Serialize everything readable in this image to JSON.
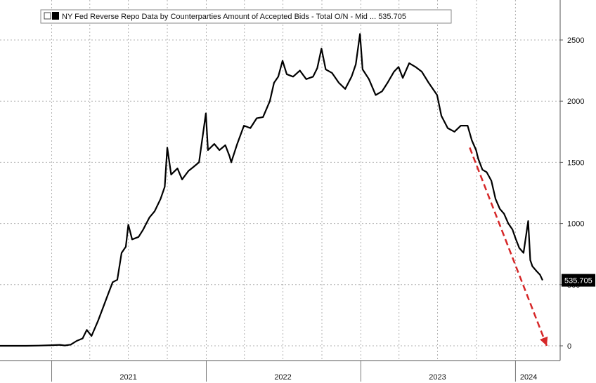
{
  "chart_data": {
    "type": "line",
    "legend_placement": "top-left",
    "grid": true,
    "ylim": [
      0,
      2800
    ],
    "y_axis_position": "right",
    "y_ticks": [
      0,
      500,
      1000,
      1500,
      2000,
      2500
    ],
    "y_tick_labels": [
      "0",
      "500",
      "1000",
      "1500",
      "2000",
      "2500"
    ],
    "x_range": [
      "2020-09",
      "2024-03"
    ],
    "x_tick_labels": [
      "2021",
      "2022",
      "2023",
      "2024"
    ],
    "x_tick_dates": [
      "2021-07",
      "2022-07",
      "2023-07",
      "2024-02"
    ],
    "x_year_boundaries": [
      "2021-01",
      "2022-01",
      "2023-01",
      "2024-01"
    ],
    "series": [
      {
        "name": "NY Fed Reverse Repo Data by Counterparties Amount of Accepted Bids - Total O/N - Mid ... 535.705",
        "color": "#000000",
        "last_value_label": "535.705",
        "points": [
          [
            "2020-09-01",
            0
          ],
          [
            "2020-10-01",
            0
          ],
          [
            "2020-11-01",
            0
          ],
          [
            "2020-12-01",
            2
          ],
          [
            "2021-01-01",
            5
          ],
          [
            "2021-01-20",
            8
          ],
          [
            "2021-02-01",
            3
          ],
          [
            "2021-02-15",
            10
          ],
          [
            "2021-03-01",
            40
          ],
          [
            "2021-03-15",
            60
          ],
          [
            "2021-03-25",
            130
          ],
          [
            "2021-04-05",
            80
          ],
          [
            "2021-04-20",
            200
          ],
          [
            "2021-05-01",
            300
          ],
          [
            "2021-05-15",
            430
          ],
          [
            "2021-05-25",
            520
          ],
          [
            "2021-06-05",
            540
          ],
          [
            "2021-06-15",
            760
          ],
          [
            "2021-06-25",
            810
          ],
          [
            "2021-07-01",
            990
          ],
          [
            "2021-07-10",
            870
          ],
          [
            "2021-07-25",
            890
          ],
          [
            "2021-08-05",
            950
          ],
          [
            "2021-08-20",
            1050
          ],
          [
            "2021-09-01",
            1100
          ],
          [
            "2021-09-15",
            1200
          ],
          [
            "2021-09-25",
            1300
          ],
          [
            "2021-10-01",
            1620
          ],
          [
            "2021-10-10",
            1400
          ],
          [
            "2021-10-25",
            1450
          ],
          [
            "2021-11-05",
            1360
          ],
          [
            "2021-11-20",
            1430
          ],
          [
            "2021-12-01",
            1460
          ],
          [
            "2021-12-15",
            1500
          ],
          [
            "2021-12-31",
            1900
          ],
          [
            "2022-01-05",
            1600
          ],
          [
            "2022-01-20",
            1650
          ],
          [
            "2022-02-01",
            1600
          ],
          [
            "2022-02-15",
            1640
          ],
          [
            "2022-02-25",
            1550
          ],
          [
            "2022-03-01",
            1500
          ],
          [
            "2022-03-15",
            1650
          ],
          [
            "2022-03-31",
            1800
          ],
          [
            "2022-04-15",
            1780
          ],
          [
            "2022-04-30",
            1860
          ],
          [
            "2022-05-15",
            1870
          ],
          [
            "2022-05-31",
            2000
          ],
          [
            "2022-06-10",
            2150
          ],
          [
            "2022-06-20",
            2200
          ],
          [
            "2022-06-30",
            2330
          ],
          [
            "2022-07-10",
            2220
          ],
          [
            "2022-07-25",
            2200
          ],
          [
            "2022-08-10",
            2250
          ],
          [
            "2022-08-25",
            2180
          ],
          [
            "2022-09-10",
            2200
          ],
          [
            "2022-09-20",
            2270
          ],
          [
            "2022-09-30",
            2430
          ],
          [
            "2022-10-10",
            2260
          ],
          [
            "2022-10-25",
            2230
          ],
          [
            "2022-11-10",
            2150
          ],
          [
            "2022-11-25",
            2100
          ],
          [
            "2022-12-10",
            2200
          ],
          [
            "2022-12-20",
            2300
          ],
          [
            "2022-12-30",
            2550
          ],
          [
            "2023-01-05",
            2260
          ],
          [
            "2023-01-20",
            2180
          ],
          [
            "2023-02-05",
            2050
          ],
          [
            "2023-02-20",
            2080
          ],
          [
            "2023-03-05",
            2150
          ],
          [
            "2023-03-20",
            2240
          ],
          [
            "2023-03-31",
            2280
          ],
          [
            "2023-04-10",
            2190
          ],
          [
            "2023-04-25",
            2310
          ],
          [
            "2023-05-10",
            2280
          ],
          [
            "2023-05-25",
            2240
          ],
          [
            "2023-06-10",
            2150
          ],
          [
            "2023-06-30",
            2050
          ],
          [
            "2023-07-10",
            1880
          ],
          [
            "2023-07-25",
            1780
          ],
          [
            "2023-08-10",
            1750
          ],
          [
            "2023-08-25",
            1800
          ],
          [
            "2023-09-10",
            1800
          ],
          [
            "2023-09-20",
            1680
          ],
          [
            "2023-09-30",
            1600
          ],
          [
            "2023-10-05",
            1530
          ],
          [
            "2023-10-15",
            1440
          ],
          [
            "2023-10-25",
            1420
          ],
          [
            "2023-11-05",
            1350
          ],
          [
            "2023-11-15",
            1200
          ],
          [
            "2023-11-25",
            1120
          ],
          [
            "2023-12-05",
            1080
          ],
          [
            "2023-12-15",
            1000
          ],
          [
            "2023-12-25",
            950
          ],
          [
            "2024-01-01",
            880
          ],
          [
            "2024-01-10",
            800
          ],
          [
            "2024-01-20",
            760
          ],
          [
            "2024-01-31",
            1020
          ],
          [
            "2024-02-05",
            700
          ],
          [
            "2024-02-10",
            650
          ],
          [
            "2024-02-20",
            610
          ],
          [
            "2024-02-28",
            580
          ],
          [
            "2024-03-05",
            535.705
          ]
        ]
      }
    ],
    "trend_arrow": {
      "color": "#d62728",
      "style": "dashed",
      "from": [
        "2023-09-15",
        1620
      ],
      "to": [
        "2024-03-15",
        0
      ]
    }
  }
}
